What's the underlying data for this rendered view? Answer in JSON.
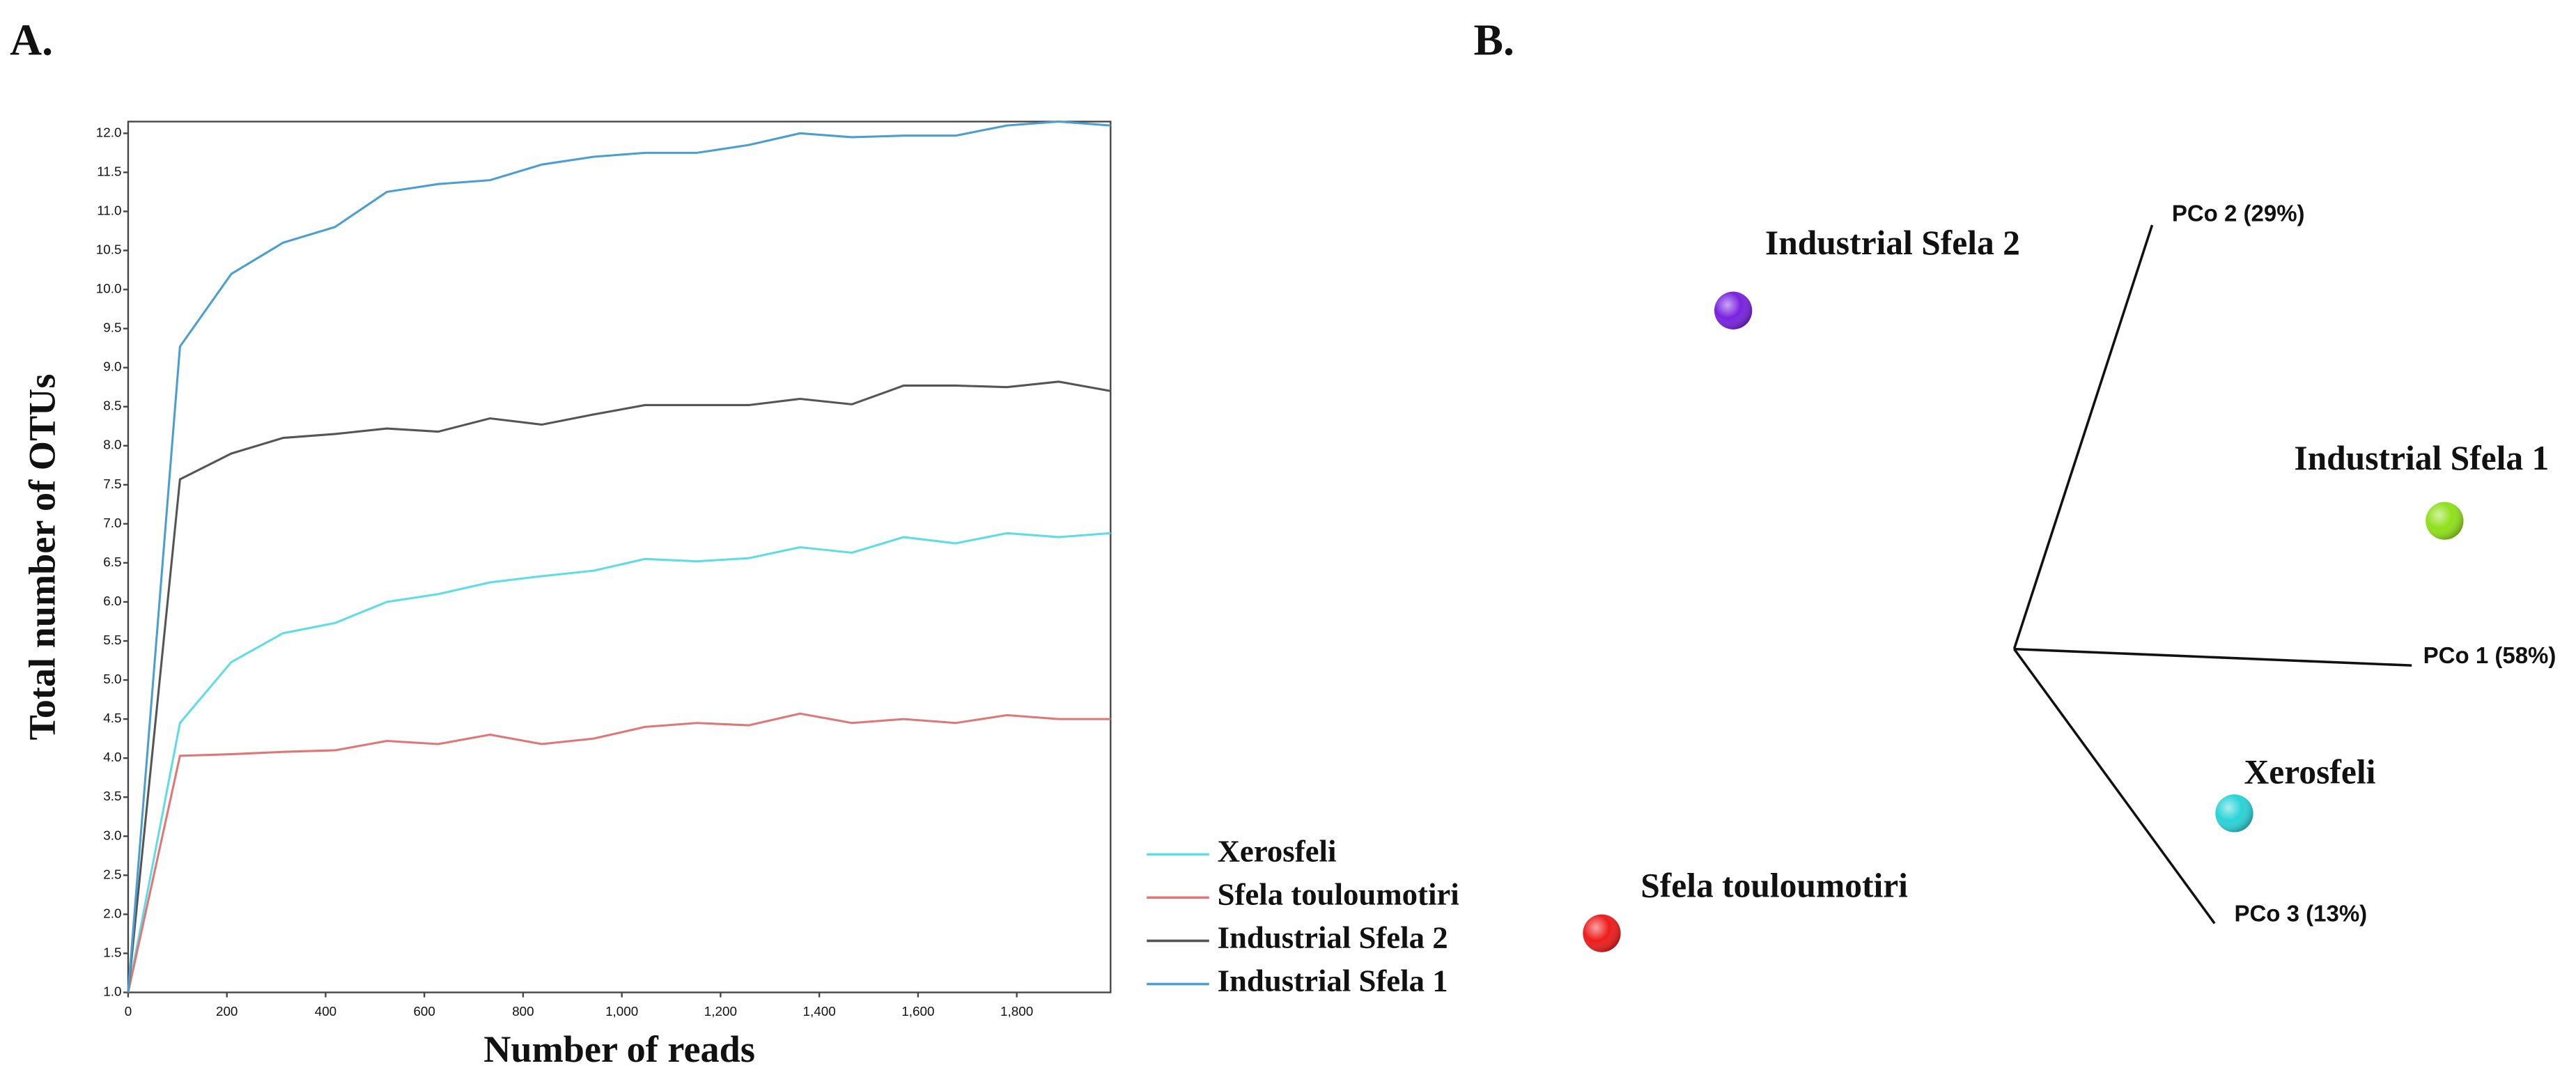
{
  "chart_data": [
    {
      "type": "line",
      "panel": "A.",
      "xlabel": "Number of reads",
      "ylabel": "Total number of OTUs",
      "x": [
        0,
        105,
        209,
        314,
        419,
        524,
        628,
        733,
        838,
        943,
        1047,
        1152,
        1257,
        1361,
        1466,
        1571,
        1676,
        1780,
        1885,
        1990
      ],
      "series": [
        {
          "name": "Xerosfeli",
          "color": "#5fdde6",
          "values": [
            1.0,
            4.45,
            5.23,
            5.6,
            5.73,
            6.0,
            6.1,
            6.25,
            6.33,
            6.4,
            6.55,
            6.52,
            6.56,
            6.7,
            6.63,
            6.83,
            6.75,
            6.88,
            6.83,
            6.88
          ]
        },
        {
          "name": "Sfela touloumotiri",
          "color": "#e07676",
          "values": [
            1.0,
            4.03,
            4.05,
            4.08,
            4.1,
            4.22,
            4.18,
            4.3,
            4.18,
            4.25,
            4.4,
            4.45,
            4.42,
            4.57,
            4.45,
            4.5,
            4.45,
            4.55,
            4.5,
            4.5
          ]
        },
        {
          "name": "Industrial Sfela 2",
          "color": "#555555",
          "values": [
            1.0,
            7.57,
            7.9,
            8.1,
            8.15,
            8.22,
            8.18,
            8.35,
            8.27,
            8.4,
            8.52,
            8.52,
            8.52,
            8.6,
            8.53,
            8.77,
            8.77,
            8.75,
            8.82,
            8.7
          ]
        },
        {
          "name": "Industrial Sfela 1",
          "color": "#4a9fd0",
          "values": [
            1.0,
            9.27,
            10.2,
            10.6,
            10.8,
            11.25,
            11.35,
            11.4,
            11.6,
            11.7,
            11.75,
            11.75,
            11.85,
            12.0,
            11.95,
            11.97,
            11.97,
            12.1,
            12.15,
            12.1
          ]
        }
      ],
      "xlim": [
        0,
        1990
      ],
      "ylim": [
        1.0,
        12.15
      ],
      "xticks": [
        0,
        200,
        400,
        600,
        800,
        {
          "value": 1000,
          "label": "1,000"
        },
        {
          "value": 1200,
          "label": "1,200"
        },
        {
          "value": 1400,
          "label": "1,400"
        },
        {
          "value": 1600,
          "label": "1,600"
        },
        {
          "value": 1800,
          "label": "1,800"
        }
      ],
      "yticks": [
        {
          "value": 1,
          "label": "1.0"
        },
        1.5,
        {
          "value": 2,
          "label": "2.0"
        },
        2.5,
        {
          "value": 3,
          "label": "3.0"
        },
        3.5,
        {
          "value": 4,
          "label": "4.0"
        },
        4.5,
        {
          "value": 5,
          "label": "5.0"
        },
        5.5,
        {
          "value": 6,
          "label": "6.0"
        },
        6.5,
        {
          "value": 7,
          "label": "7.0"
        },
        7.5,
        {
          "value": 8,
          "label": "8.0"
        },
        8.5,
        {
          "value": 9,
          "label": "9.0"
        },
        9.5,
        {
          "value": 10,
          "label": "10.0"
        },
        10.5,
        {
          "value": 11,
          "label": "11.0"
        },
        11.5,
        {
          "value": 12,
          "label": "12.0"
        }
      ]
    },
    {
      "type": "pcoa",
      "panel": "B.",
      "axes": [
        "PCo 1 (58%)",
        "PCo 2 (29%)",
        "PCo 3 (13%)"
      ],
      "points": [
        {
          "name": "Industrial Sfela 2",
          "color": "#7a22e0"
        },
        {
          "name": "Industrial Sfela 1",
          "color": "#8fe01a"
        },
        {
          "name": "Xerosfeli",
          "color": "#2ad3d8"
        },
        {
          "name": "Sfela touloumotiri",
          "color": "#ee1c1c"
        }
      ]
    }
  ]
}
